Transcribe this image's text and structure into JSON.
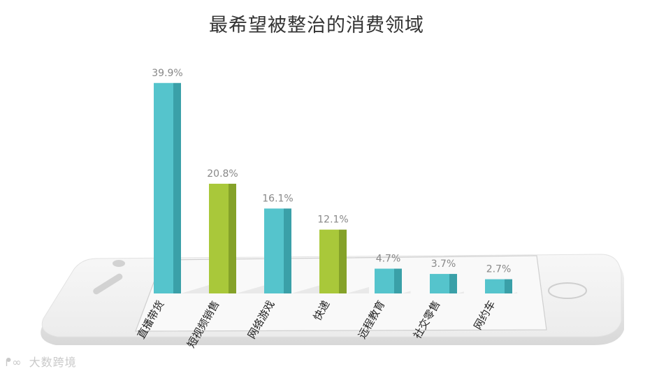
{
  "chart_data": {
    "type": "bar",
    "title": "最希望被整治的消费领域",
    "categories": [
      "直播带货",
      "短视频销售",
      "网络游戏",
      "快递",
      "远程教育",
      "社交零售",
      "网约车"
    ],
    "values": [
      39.9,
      20.8,
      16.1,
      12.1,
      4.7,
      3.7,
      2.7
    ],
    "data_labels": [
      "39.9%",
      "20.8%",
      "16.1%",
      "12.1%",
      "4.7%",
      "3.7%",
      "2.7%"
    ],
    "bar_colors": [
      "#55c4cc",
      "#a9c83a",
      "#55c4cc",
      "#a9c83a",
      "#55c4cc",
      "#55c4cc",
      "#55c4cc"
    ],
    "bar_side_colors": [
      "#3aa0a8",
      "#85a229",
      "#3aa0a8",
      "#85a229",
      "#3aa0a8",
      "#3aa0a8",
      "#3aa0a8"
    ],
    "xlabel": "",
    "ylabel": "",
    "ylim": [
      0,
      40
    ],
    "grid": false,
    "legend": "none"
  },
  "watermark": {
    "icon": "logo-icon",
    "text": "大数跨境"
  }
}
